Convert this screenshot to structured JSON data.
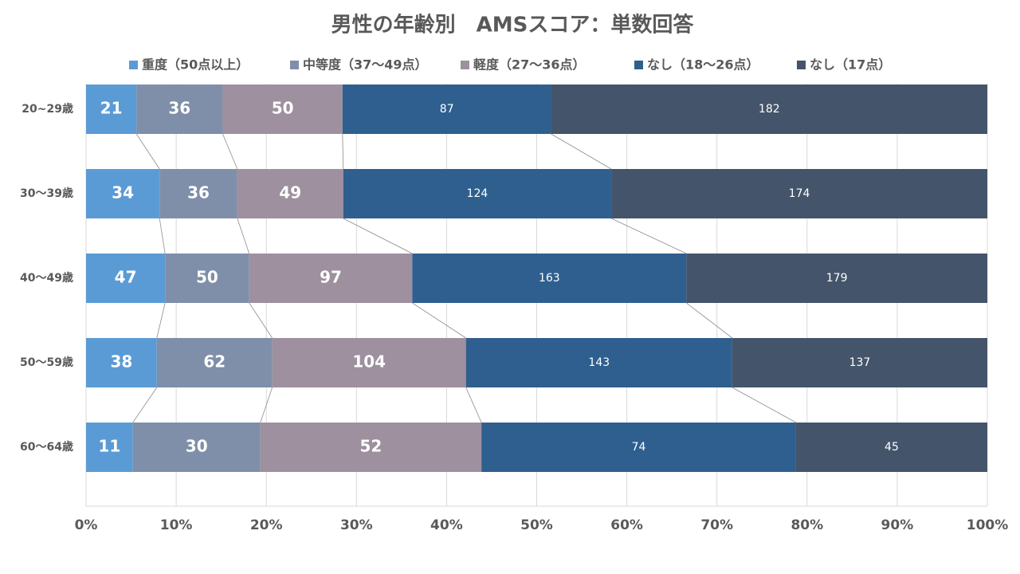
{
  "chart_data": {
    "type": "bar",
    "orientation": "horizontal",
    "stacked": "percent",
    "title": "男性の年齢別　AMSスコア：単数回答",
    "categories": [
      "20~29歳",
      "30～39歳",
      "40～49歳",
      "50～59歳",
      "60～64歳"
    ],
    "series": [
      {
        "name": "重度（50点以上）",
        "color": "#5b9bd5",
        "values": [
          21,
          34,
          47,
          38,
          11
        ]
      },
      {
        "name": "中等度（37～49点）",
        "color": "#7f8fa9",
        "values": [
          36,
          36,
          50,
          62,
          30
        ]
      },
      {
        "name": "軽度（27～36点）",
        "color": "#9e909f",
        "values": [
          50,
          49,
          97,
          104,
          52
        ]
      },
      {
        "name": "なし（18～26点）",
        "color": "#2e5f8e",
        "values": [
          87,
          124,
          163,
          143,
          74
        ]
      },
      {
        "name": "なし（17点）",
        "color": "#44546a",
        "values": [
          182,
          174,
          179,
          137,
          45
        ]
      }
    ],
    "xlim": [
      0,
      100
    ],
    "xticks": [
      {
        "value": 0,
        "label": "0%"
      },
      {
        "value": 10,
        "label": "10%"
      },
      {
        "value": 20,
        "label": "20%"
      },
      {
        "value": 30,
        "label": "30%"
      },
      {
        "value": 40,
        "label": "40%"
      },
      {
        "value": 50,
        "label": "50%"
      },
      {
        "value": 60,
        "label": "60%"
      },
      {
        "value": 70,
        "label": "70%"
      },
      {
        "value": 80,
        "label": "80%"
      },
      {
        "value": 90,
        "label": "90%"
      },
      {
        "value": 100,
        "label": "100%"
      }
    ],
    "grid": true,
    "legend": "top",
    "series_lines": true
  }
}
